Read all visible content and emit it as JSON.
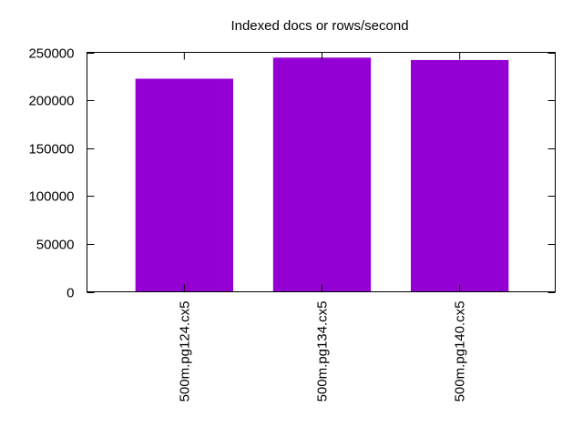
{
  "chart_data": {
    "type": "bar",
    "title": "Indexed docs or rows/second",
    "xlabel": "",
    "ylabel": "",
    "categories": [
      "500m.pg124.cx5",
      "500m.pg134.cx5",
      "500m.pg140.cx5"
    ],
    "values": [
      222500,
      244500,
      242000
    ],
    "ylim": [
      0,
      250000
    ],
    "yticks": [
      0,
      50000,
      100000,
      150000,
      200000,
      250000
    ],
    "ytick_labels": [
      "0",
      "50000",
      "100000",
      "150000",
      "200000",
      "250000"
    ],
    "bar_color": "#9400d3",
    "grid": false,
    "legend": "none"
  }
}
